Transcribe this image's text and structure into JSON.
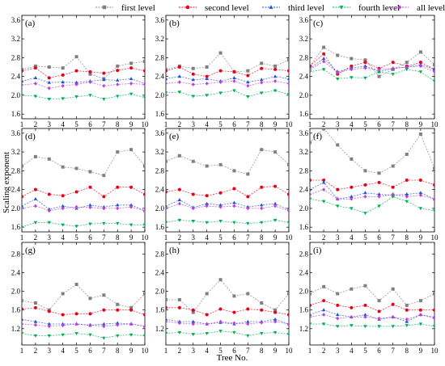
{
  "chart_data": [
    {
      "panel": "(a)",
      "type": "line",
      "xlabel": "",
      "ylabel": "",
      "xlim": [
        1,
        10
      ],
      "ylim": [
        1.5,
        3.7
      ],
      "x": [
        1,
        2,
        3,
        4,
        5,
        6,
        7,
        8,
        9,
        10
      ],
      "yticks": [
        "1.6",
        "2.0",
        "2.4",
        "2.8",
        "3.2",
        "3.6"
      ],
      "series": [
        {
          "name": "first level",
          "values": [
            2.55,
            2.62,
            2.6,
            2.58,
            2.82,
            2.45,
            2.35,
            2.62,
            2.68,
            2.72
          ]
        },
        {
          "name": "second level",
          "values": [
            2.52,
            2.58,
            2.37,
            2.43,
            2.52,
            2.5,
            2.47,
            2.53,
            2.58,
            2.52
          ]
        },
        {
          "name": "third level",
          "values": [
            2.3,
            2.37,
            2.27,
            2.28,
            2.27,
            2.3,
            2.33,
            2.32,
            2.35,
            2.25
          ]
        },
        {
          "name": "fourth level",
          "values": [
            2.0,
            1.98,
            1.92,
            1.93,
            1.97,
            2.0,
            1.92,
            1.98,
            2.03,
            1.95
          ]
        },
        {
          "name": "all levels",
          "values": [
            2.22,
            2.25,
            2.15,
            2.2,
            2.23,
            2.28,
            2.2,
            2.23,
            2.25,
            2.23
          ]
        }
      ]
    },
    {
      "panel": "(b)",
      "type": "line",
      "xlabel": "",
      "ylabel": "",
      "xlim": [
        1,
        10
      ],
      "ylim": [
        1.5,
        3.7
      ],
      "x": [
        1,
        2,
        3,
        4,
        5,
        6,
        7,
        8,
        9,
        10
      ],
      "yticks": [
        "1.6",
        "2.0",
        "2.4",
        "2.8",
        "3.2",
        "3.6"
      ],
      "series": [
        {
          "name": "first level",
          "values": [
            2.55,
            2.62,
            2.57,
            2.6,
            2.9,
            2.5,
            2.52,
            2.68,
            2.62,
            2.75
          ]
        },
        {
          "name": "second level",
          "values": [
            2.52,
            2.6,
            2.45,
            2.4,
            2.52,
            2.5,
            2.42,
            2.57,
            2.55,
            2.52
          ]
        },
        {
          "name": "third level",
          "values": [
            2.35,
            2.4,
            2.33,
            2.35,
            2.3,
            2.37,
            2.28,
            2.33,
            2.4,
            2.35
          ]
        },
        {
          "name": "fourth level",
          "values": [
            2.05,
            2.07,
            1.98,
            2.0,
            2.05,
            2.1,
            1.97,
            2.05,
            2.1,
            2.02
          ]
        },
        {
          "name": "all levels",
          "values": [
            2.25,
            2.28,
            2.23,
            2.25,
            2.28,
            2.3,
            2.2,
            2.27,
            2.3,
            2.25
          ]
        }
      ]
    },
    {
      "panel": "(c)",
      "type": "line",
      "xlabel": "",
      "ylabel": "",
      "xlim": [
        1,
        10
      ],
      "ylim": [
        1.5,
        3.7
      ],
      "x": [
        1,
        2,
        3,
        4,
        5,
        6,
        7,
        8,
        9,
        10
      ],
      "yticks": [
        "1.6",
        "2.0",
        "2.4",
        "2.8",
        "3.2",
        "3.6"
      ],
      "series": [
        {
          "name": "first level",
          "values": [
            2.62,
            3.02,
            2.85,
            2.78,
            2.75,
            2.4,
            2.55,
            2.7,
            2.92,
            2.65
          ]
        },
        {
          "name": "second level",
          "values": [
            2.62,
            2.88,
            2.45,
            2.62,
            2.7,
            2.57,
            2.7,
            2.62,
            2.7,
            2.55
          ]
        },
        {
          "name": "third level",
          "values": [
            2.57,
            2.78,
            2.5,
            2.58,
            2.62,
            2.5,
            2.57,
            2.6,
            2.65,
            2.55
          ]
        },
        {
          "name": "fourth level",
          "values": [
            2.5,
            2.55,
            2.35,
            2.38,
            2.37,
            2.5,
            2.45,
            2.55,
            2.5,
            2.3
          ]
        },
        {
          "name": "all levels",
          "values": [
            2.55,
            2.72,
            2.48,
            2.55,
            2.58,
            2.55,
            2.57,
            2.6,
            2.62,
            2.5
          ]
        }
      ]
    },
    {
      "panel": "(d)",
      "type": "line",
      "xlabel": "",
      "ylabel": "Scaling exponent",
      "xlim": [
        1,
        10
      ],
      "ylim": [
        1.5,
        3.7
      ],
      "x": [
        1,
        2,
        3,
        4,
        5,
        6,
        7,
        8,
        9,
        10
      ],
      "yticks": [
        "1.6",
        "2.0",
        "2.4",
        "2.8",
        "3.2",
        "3.6"
      ],
      "series": [
        {
          "name": "first level",
          "values": [
            2.9,
            3.1,
            3.05,
            2.88,
            2.85,
            2.78,
            2.7,
            3.2,
            3.25,
            2.9
          ]
        },
        {
          "name": "second level",
          "values": [
            2.25,
            2.4,
            2.3,
            2.27,
            2.35,
            2.45,
            2.25,
            2.45,
            2.45,
            2.3
          ]
        },
        {
          "name": "third level",
          "values": [
            2.05,
            2.2,
            1.98,
            2.05,
            2.0,
            2.07,
            2.03,
            2.07,
            2.07,
            1.95
          ]
        },
        {
          "name": "fourth level",
          "values": [
            1.6,
            1.7,
            1.7,
            1.65,
            1.62,
            1.67,
            1.68,
            1.68,
            1.65,
            1.65
          ]
        },
        {
          "name": "all levels",
          "values": [
            2.0,
            2.05,
            1.95,
            2.0,
            2.03,
            2.02,
            2.0,
            2.0,
            2.03,
            1.95
          ]
        }
      ]
    },
    {
      "panel": "(e)",
      "type": "line",
      "xlabel": "",
      "ylabel": "",
      "xlim": [
        1,
        10
      ],
      "ylim": [
        1.5,
        3.7
      ],
      "x": [
        1,
        2,
        3,
        4,
        5,
        6,
        7,
        8,
        9,
        10
      ],
      "yticks": [
        "1.6",
        "2.0",
        "2.4",
        "2.8",
        "3.2",
        "3.6"
      ],
      "series": [
        {
          "name": "first level",
          "values": [
            3.0,
            3.12,
            3.0,
            2.9,
            2.93,
            2.8,
            2.73,
            3.25,
            3.2,
            2.93
          ]
        },
        {
          "name": "second level",
          "values": [
            2.35,
            2.4,
            2.3,
            2.27,
            2.33,
            2.42,
            2.25,
            2.45,
            2.47,
            2.3
          ]
        },
        {
          "name": "third level",
          "values": [
            2.05,
            2.18,
            2.02,
            2.1,
            2.07,
            2.12,
            2.03,
            2.07,
            2.1,
            1.97
          ]
        },
        {
          "name": "fourth level",
          "values": [
            1.7,
            1.75,
            1.73,
            1.7,
            1.73,
            1.7,
            1.68,
            1.7,
            1.75,
            1.7
          ]
        },
        {
          "name": "all levels",
          "values": [
            2.0,
            2.1,
            2.0,
            2.05,
            2.03,
            2.05,
            2.0,
            2.0,
            2.05,
            1.95
          ]
        }
      ]
    },
    {
      "panel": "(f)",
      "type": "line",
      "xlabel": "",
      "ylabel": "",
      "xlim": [
        1,
        10
      ],
      "ylim": [
        1.5,
        3.7
      ],
      "x": [
        1,
        2,
        3,
        4,
        5,
        6,
        7,
        8,
        9,
        10
      ],
      "yticks": [
        "1.6",
        "2.0",
        "2.4",
        "2.8",
        "3.2",
        "3.6"
      ],
      "series": [
        {
          "name": "first level",
          "values": [
            3.4,
            3.7,
            3.35,
            3.05,
            2.8,
            2.75,
            2.9,
            3.15,
            3.58,
            2.85
          ]
        },
        {
          "name": "second level",
          "values": [
            2.6,
            2.6,
            2.4,
            2.45,
            2.5,
            2.55,
            2.45,
            2.6,
            2.6,
            2.5
          ]
        },
        {
          "name": "third level",
          "values": [
            2.4,
            2.55,
            2.2,
            2.25,
            2.33,
            2.3,
            2.28,
            2.3,
            2.33,
            2.2
          ]
        },
        {
          "name": "fourth level",
          "values": [
            2.2,
            2.15,
            2.05,
            2.0,
            1.9,
            2.05,
            2.25,
            2.15,
            2.0,
            1.95
          ]
        },
        {
          "name": "all levels",
          "values": [
            2.3,
            2.4,
            2.2,
            2.2,
            2.25,
            2.25,
            2.3,
            2.25,
            2.28,
            2.2
          ]
        }
      ]
    },
    {
      "panel": "(g)",
      "type": "line",
      "xlabel": "",
      "ylabel": "",
      "xlim": [
        1,
        10
      ],
      "ylim": [
        0.85,
        3.05
      ],
      "x": [
        1,
        2,
        3,
        4,
        5,
        6,
        7,
        8,
        9,
        10
      ],
      "yticks": [
        "1.2",
        "1.6",
        "2.0",
        "2.4",
        "2.8"
      ],
      "series": [
        {
          "name": "first level",
          "values": [
            1.8,
            1.75,
            1.6,
            1.95,
            2.15,
            1.85,
            1.92,
            1.72,
            1.65,
            1.95
          ]
        },
        {
          "name": "second level",
          "values": [
            1.62,
            1.65,
            1.57,
            1.5,
            1.52,
            1.52,
            1.6,
            1.6,
            1.6,
            1.5
          ]
        },
        {
          "name": "third level",
          "values": [
            1.4,
            1.35,
            1.3,
            1.3,
            1.3,
            1.27,
            1.3,
            1.32,
            1.3,
            1.25
          ]
        },
        {
          "name": "fourth level",
          "values": [
            1.1,
            1.05,
            1.05,
            1.07,
            1.1,
            1.07,
            1.0,
            1.05,
            1.07,
            1.05
          ]
        },
        {
          "name": "all levels",
          "values": [
            1.3,
            1.28,
            1.25,
            1.27,
            1.3,
            1.28,
            1.25,
            1.28,
            1.3,
            1.25
          ]
        }
      ]
    },
    {
      "panel": "(h)",
      "type": "line",
      "xlabel": "Tree No.",
      "ylabel": "",
      "xlim": [
        1,
        10
      ],
      "ylim": [
        0.85,
        3.05
      ],
      "x": [
        1,
        2,
        3,
        4,
        5,
        6,
        7,
        8,
        9,
        10
      ],
      "yticks": [
        "1.2",
        "1.6",
        "2.0",
        "2.4",
        "2.8"
      ],
      "series": [
        {
          "name": "first level",
          "values": [
            1.82,
            1.82,
            1.55,
            1.95,
            2.25,
            1.9,
            1.95,
            1.75,
            1.6,
            1.95
          ]
        },
        {
          "name": "second level",
          "values": [
            1.65,
            1.65,
            1.6,
            1.5,
            1.62,
            1.55,
            1.62,
            1.6,
            1.55,
            1.5
          ]
        },
        {
          "name": "third level",
          "values": [
            1.4,
            1.35,
            1.35,
            1.3,
            1.33,
            1.3,
            1.35,
            1.35,
            1.4,
            1.3
          ]
        },
        {
          "name": "fourth level",
          "values": [
            1.1,
            1.12,
            1.08,
            1.1,
            1.15,
            1.12,
            1.05,
            1.1,
            1.12,
            1.08
          ]
        },
        {
          "name": "all levels",
          "values": [
            1.35,
            1.32,
            1.3,
            1.3,
            1.35,
            1.32,
            1.3,
            1.33,
            1.35,
            1.3
          ]
        }
      ]
    },
    {
      "panel": "(i)",
      "type": "line",
      "xlabel": "",
      "ylabel": "",
      "xlim": [
        1,
        10
      ],
      "ylim": [
        0.85,
        3.05
      ],
      "x": [
        1,
        2,
        3,
        4,
        5,
        6,
        7,
        8,
        9,
        10
      ],
      "yticks": [
        "1.2",
        "1.6",
        "2.0",
        "2.4",
        "2.8"
      ],
      "series": [
        {
          "name": "first level",
          "values": [
            1.95,
            2.1,
            1.95,
            2.05,
            2.12,
            1.8,
            2.05,
            1.7,
            1.8,
            1.95
          ]
        },
        {
          "name": "second level",
          "values": [
            1.7,
            1.8,
            1.7,
            1.65,
            1.7,
            1.57,
            1.72,
            1.6,
            1.6,
            1.6
          ]
        },
        {
          "name": "third level",
          "values": [
            1.5,
            1.6,
            1.5,
            1.45,
            1.5,
            1.4,
            1.45,
            1.35,
            1.5,
            1.45
          ]
        },
        {
          "name": "fourth level",
          "values": [
            1.3,
            1.3,
            1.25,
            1.27,
            1.25,
            1.25,
            1.25,
            1.27,
            1.3,
            1.25
          ]
        },
        {
          "name": "all levels",
          "values": [
            1.45,
            1.5,
            1.42,
            1.45,
            1.45,
            1.42,
            1.45,
            1.4,
            1.5,
            1.42
          ]
        }
      ]
    }
  ],
  "legend": {
    "placement": "top",
    "items": [
      {
        "name": "first level",
        "color": "#808080",
        "marker": "square"
      },
      {
        "name": "second level",
        "color": "#e8001a",
        "marker": "circle"
      },
      {
        "name": "third level",
        "color": "#1f4fd6",
        "marker": "triangle-up"
      },
      {
        "name": "fourth level",
        "color": "#00b050",
        "marker": "triangle-down"
      },
      {
        "name": "all levels",
        "color": "#bf3fd6",
        "marker": "diamond"
      }
    ]
  },
  "axes_text": {
    "ylabel": "Scaling exponent",
    "xlabel": "Tree No."
  }
}
